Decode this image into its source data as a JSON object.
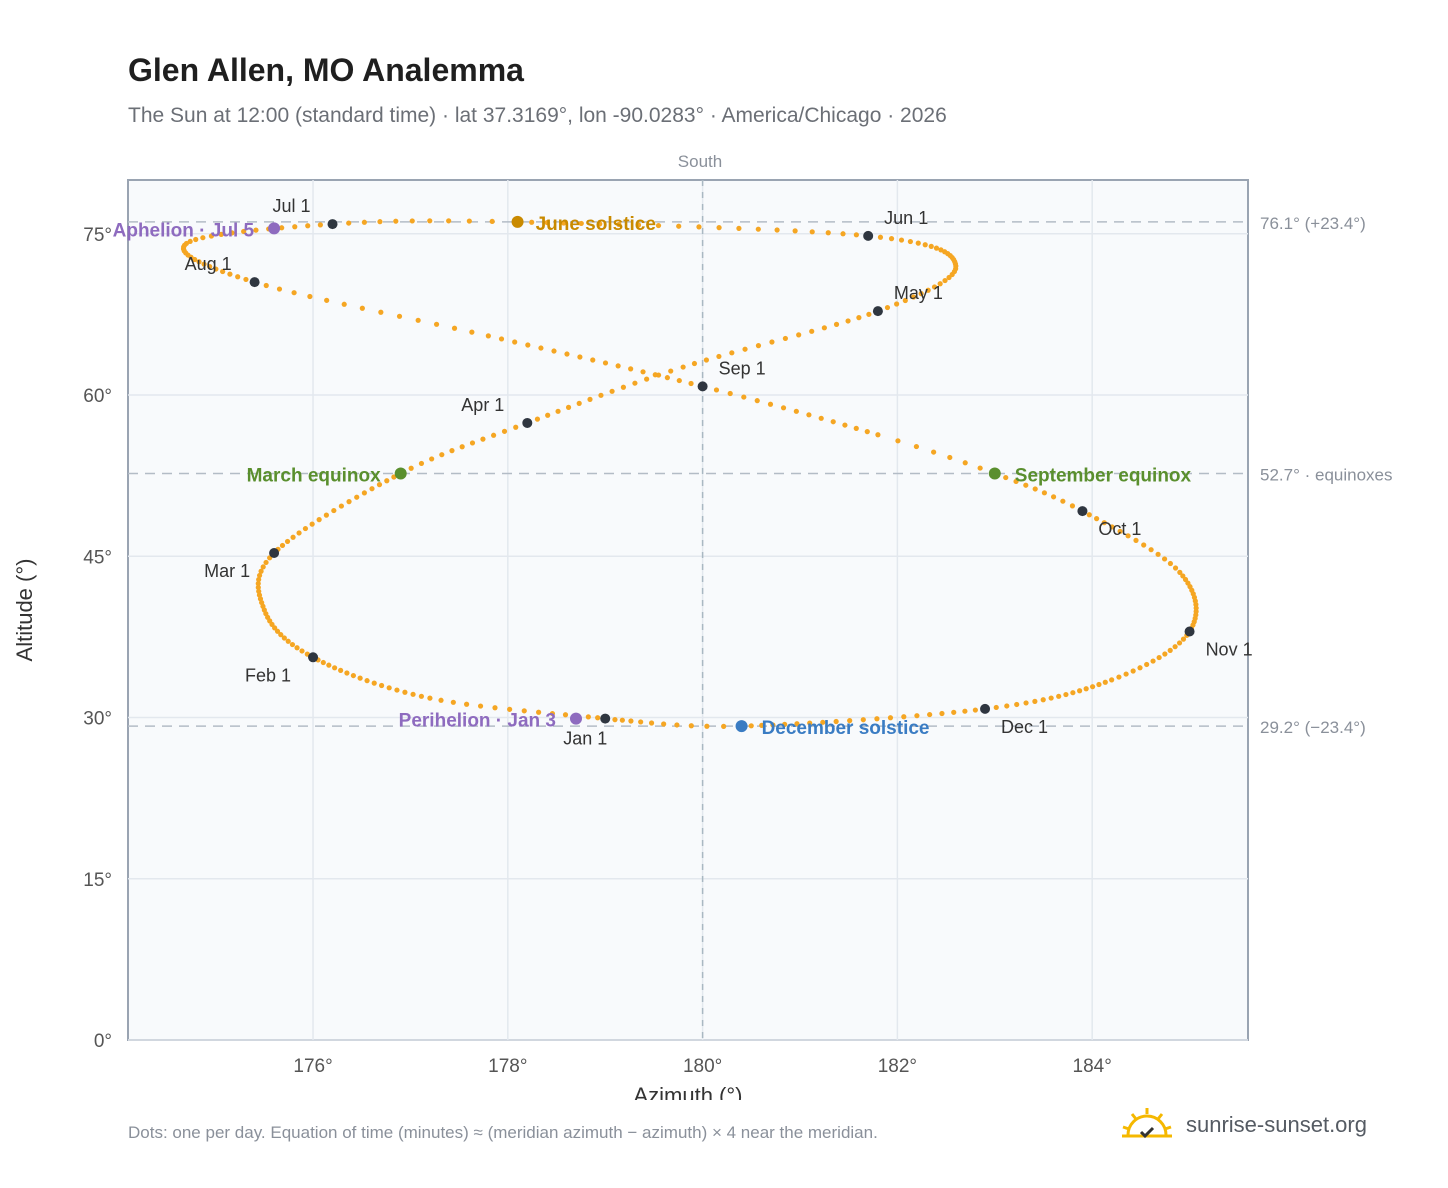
{
  "header": {
    "title": "Glen Allen, MO Analemma",
    "subtitle": "The Sun at 12:00 (standard time) · lat 37.3169°, lon -90.0283° · America/Chicago · 2026"
  },
  "footer": {
    "note": "Dots: one per day. Equation of time (minutes) ≈ (meridian azimuth − azimuth) × 4 near the meridian.",
    "brand": "sunrise-sunset.org"
  },
  "chart_data": {
    "type": "scatter",
    "title": "Glen Allen, MO Analemma",
    "xlabel": "Azimuth (°)",
    "ylabel": "Altitude (°)",
    "xlim": [
      174.1,
      185.6
    ],
    "ylim": [
      0,
      80
    ],
    "grid": true,
    "x_ticks": [
      176,
      178,
      180,
      182,
      184
    ],
    "x_tick_labels": [
      "176°",
      "178°",
      "180°",
      "182°",
      "184°"
    ],
    "y_ticks": [
      0,
      15,
      30,
      45,
      60,
      75
    ],
    "y_tick_labels": [
      "0°",
      "15°",
      "30°",
      "45°",
      "60°",
      "75°"
    ],
    "meridian": {
      "azimuth": 180,
      "label": "South"
    },
    "reference_lines": [
      {
        "altitude": 76.1,
        "label": "76.1° (+23.4°)"
      },
      {
        "altitude": 52.7,
        "label": "52.7° · equinoxes"
      },
      {
        "altitude": 29.2,
        "label": "29.2° (−23.4°)"
      }
    ],
    "series": [
      {
        "kind": "daily",
        "points": [
          {
            "date": "2026-01-01",
            "az": 179.0,
            "alt": 29.9
          },
          {
            "date": "2026-01-15",
            "az": 177.2,
            "alt": 31.8
          },
          {
            "date": "2026-02-01",
            "az": 176.0,
            "alt": 35.6
          },
          {
            "date": "2026-02-15",
            "az": 175.5,
            "alt": 40.0
          },
          {
            "date": "2026-03-01",
            "az": 175.6,
            "alt": 45.3
          },
          {
            "date": "2026-03-20",
            "az": 176.9,
            "alt": 52.7
          },
          {
            "date": "2026-04-01",
            "az": 178.2,
            "alt": 57.4
          },
          {
            "date": "2026-04-15",
            "az": 179.8,
            "alt": 62.6
          },
          {
            "date": "2026-05-01",
            "az": 181.8,
            "alt": 67.8
          },
          {
            "date": "2026-05-15",
            "az": 182.6,
            "alt": 72.0
          },
          {
            "date": "2026-06-01",
            "az": 181.7,
            "alt": 74.8
          },
          {
            "date": "2026-06-21",
            "az": 178.1,
            "alt": 76.1
          },
          {
            "date": "2026-07-01",
            "az": 176.2,
            "alt": 75.9
          },
          {
            "date": "2026-07-15",
            "az": 174.7,
            "alt": 74.1
          },
          {
            "date": "2026-08-01",
            "az": 175.4,
            "alt": 70.5
          },
          {
            "date": "2026-08-15",
            "az": 177.8,
            "alt": 65.5
          },
          {
            "date": "2026-09-01",
            "az": 180.0,
            "alt": 60.8
          },
          {
            "date": "2026-09-15",
            "az": 181.8,
            "alt": 56.3
          },
          {
            "date": "2026-09-22",
            "az": 183.0,
            "alt": 52.7
          },
          {
            "date": "2026-10-01",
            "az": 183.9,
            "alt": 49.2
          },
          {
            "date": "2026-10-15",
            "az": 184.9,
            "alt": 43.5
          },
          {
            "date": "2026-11-01",
            "az": 185.0,
            "alt": 38.0
          },
          {
            "date": "2026-11-15",
            "az": 184.2,
            "alt": 33.5
          },
          {
            "date": "2026-12-01",
            "az": 182.9,
            "alt": 30.8
          },
          {
            "date": "2026-12-21",
            "az": 180.4,
            "alt": 29.2
          },
          {
            "date": "2026-12-31",
            "az": 179.1,
            "alt": 29.8
          }
        ]
      }
    ],
    "month_markers": [
      {
        "label": "Jan 1",
        "az": 179.0,
        "alt": 29.9
      },
      {
        "label": "Feb 1",
        "az": 176.0,
        "alt": 35.6
      },
      {
        "label": "Mar 1",
        "az": 175.6,
        "alt": 45.3
      },
      {
        "label": "Apr 1",
        "az": 178.2,
        "alt": 57.4
      },
      {
        "label": "May 1",
        "az": 181.8,
        "alt": 67.8
      },
      {
        "label": "Jun 1",
        "az": 181.7,
        "alt": 74.8
      },
      {
        "label": "Jul 1",
        "az": 176.2,
        "alt": 75.9
      },
      {
        "label": "Aug 1",
        "az": 175.4,
        "alt": 70.5
      },
      {
        "label": "Sep 1",
        "az": 180.0,
        "alt": 60.8
      },
      {
        "label": "Oct 1",
        "az": 183.9,
        "alt": 49.2
      },
      {
        "label": "Nov 1",
        "az": 185.0,
        "alt": 38.0
      },
      {
        "label": "Dec 1",
        "az": 182.9,
        "alt": 30.8
      }
    ],
    "events": [
      {
        "label": "June solstice",
        "az": 178.1,
        "alt": 76.1,
        "color": "#c98a00"
      },
      {
        "label": "December solstice",
        "az": 180.4,
        "alt": 29.2,
        "color": "#3a7cc3"
      },
      {
        "label": "March equinox",
        "az": 176.9,
        "alt": 52.7,
        "color": "#5a8f2e"
      },
      {
        "label": "September equinox",
        "az": 183.0,
        "alt": 52.7,
        "color": "#5a8f2e"
      },
      {
        "label": "Aphelion · Jul 5",
        "az": 175.6,
        "alt": 75.5,
        "color": "#8e6bbf"
      },
      {
        "label": "Perihelion · Jan 3",
        "az": 178.7,
        "alt": 29.9,
        "color": "#8e6bbf"
      }
    ],
    "colors": {
      "daily": "#f5a623",
      "month": "#2f3640",
      "axis": "#9aa4b2",
      "background": "#f8fafc"
    }
  }
}
